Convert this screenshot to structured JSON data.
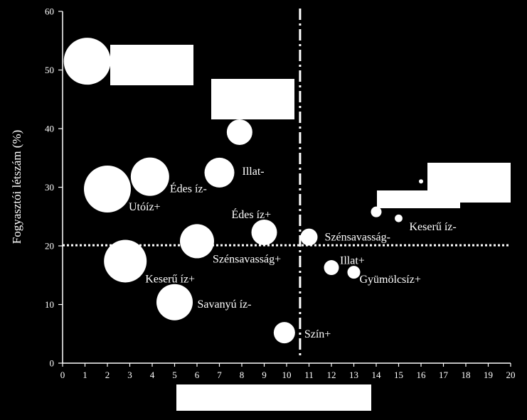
{
  "chart_data": {
    "type": "scatter",
    "title": "",
    "xlabel": "",
    "ylabel": "Fogyasztói létszám (%)",
    "xlim": [
      0,
      20
    ],
    "ylim": [
      0,
      60
    ],
    "xticks": [
      0,
      1,
      2,
      3,
      4,
      5,
      6,
      7,
      8,
      9,
      10,
      11,
      12,
      13,
      14,
      15,
      16,
      17,
      18,
      19,
      20
    ],
    "yticks": [
      0,
      10,
      20,
      30,
      40,
      50,
      60
    ],
    "reference_lines": {
      "vertical_x": 10.6,
      "horizontal_y": 20.1
    },
    "points": [
      {
        "label": "",
        "x": 1.1,
        "y": 51.5,
        "size": 1.1
      },
      {
        "label": "",
        "x": 7.9,
        "y": 39.4,
        "size": 0.6
      },
      {
        "label": "Illat-",
        "x": 7.0,
        "y": 32.5,
        "size": 0.7
      },
      {
        "label": "Édes íz-",
        "x": 3.9,
        "y": 31.8,
        "size": 0.9
      },
      {
        "label": "Utóíz+",
        "x": 2.0,
        "y": 29.7,
        "size": 1.1
      },
      {
        "label": "Édes íz+",
        "x": 9.0,
        "y": 22.3,
        "size": 0.6
      },
      {
        "label": "Szénsavasság+",
        "x": 6.0,
        "y": 20.8,
        "size": 0.8
      },
      {
        "label": "Keserű íz+",
        "x": 2.8,
        "y": 17.4,
        "size": 1.0
      },
      {
        "label": "Savanyú íz-",
        "x": 5.0,
        "y": 10.4,
        "size": 0.85
      },
      {
        "label": "Szín+",
        "x": 9.9,
        "y": 5.2,
        "size": 0.5
      },
      {
        "label": "Szénsavasság-",
        "x": 11.0,
        "y": 21.5,
        "size": 0.4
      },
      {
        "label": "Illat+",
        "x": 12.0,
        "y": 16.3,
        "size": 0.35
      },
      {
        "label": "Gyümölcsíz+",
        "x": 13.0,
        "y": 15.5,
        "size": 0.3
      },
      {
        "label": "",
        "x": 14.0,
        "y": 25.8,
        "size": 0.25
      },
      {
        "label": "Keserű íz-",
        "x": 15.0,
        "y": 24.7,
        "size": 0.18
      },
      {
        "label": "",
        "x": 16.0,
        "y": 31.0,
        "size": 0.1
      }
    ]
  },
  "colors": {
    "background": "#000000",
    "foreground": "#ffffff"
  }
}
